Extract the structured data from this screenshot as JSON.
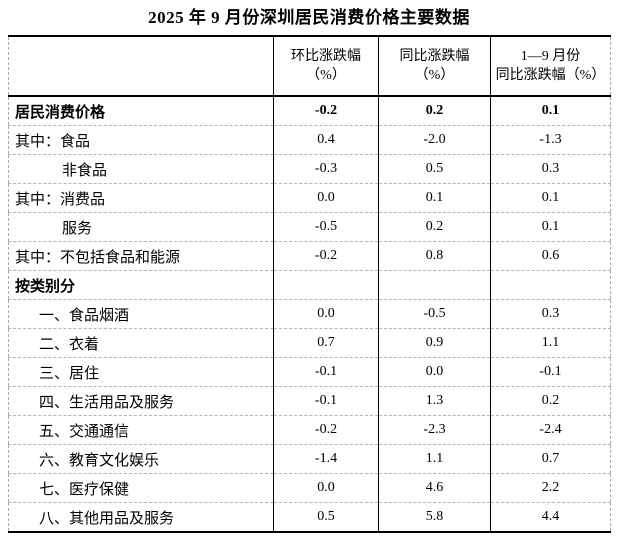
{
  "title": "2025 年 9 月份深圳居民消费价格主要数据",
  "colors": {
    "background": "#ffffff",
    "text": "#000000",
    "solid_rule": "#000000",
    "dashed_rule": "#b3b3b3"
  },
  "table": {
    "headers": [
      {
        "line1": "环比涨跌幅",
        "line2": "（%）"
      },
      {
        "line1": "同比涨跌幅",
        "line2": "（%）"
      },
      {
        "line1": "1—9 月份",
        "line2": "同比涨跌幅（%）"
      }
    ],
    "rows": [
      {
        "label": "居民消费价格",
        "values": [
          "-0.2",
          "0.2",
          "0.1"
        ]
      },
      {
        "label": "其中：食品",
        "values": [
          "0.4",
          "-2.0",
          "-1.3"
        ]
      },
      {
        "label": "非食品",
        "values": [
          "-0.3",
          "0.5",
          "0.3"
        ]
      },
      {
        "label": "其中：消费品",
        "values": [
          "0.0",
          "0.1",
          "0.1"
        ]
      },
      {
        "label": "服务",
        "values": [
          "-0.5",
          "0.2",
          "0.1"
        ]
      },
      {
        "label": "其中：不包括食品和能源",
        "values": [
          "-0.2",
          "0.8",
          "0.6"
        ]
      },
      {
        "label": "按类别分",
        "values": [
          "",
          "",
          ""
        ]
      },
      {
        "label": "一、食品烟酒",
        "values": [
          "0.0",
          "-0.5",
          "0.3"
        ]
      },
      {
        "label": "二、衣着",
        "values": [
          "0.7",
          "0.9",
          "1.1"
        ]
      },
      {
        "label": "三、居住",
        "values": [
          "-0.1",
          "0.0",
          "-0.1"
        ]
      },
      {
        "label": "四、生活用品及服务",
        "values": [
          "-0.1",
          "1.3",
          "0.2"
        ]
      },
      {
        "label": "五、交通通信",
        "values": [
          "-0.2",
          "-2.3",
          "-2.4"
        ]
      },
      {
        "label": "六、教育文化娱乐",
        "values": [
          "-1.4",
          "1.1",
          "0.7"
        ]
      },
      {
        "label": "七、医疗保健",
        "values": [
          "0.0",
          "4.6",
          "2.2"
        ]
      },
      {
        "label": "八、其他用品及服务",
        "values": [
          "0.5",
          "5.8",
          "4.4"
        ]
      }
    ]
  }
}
